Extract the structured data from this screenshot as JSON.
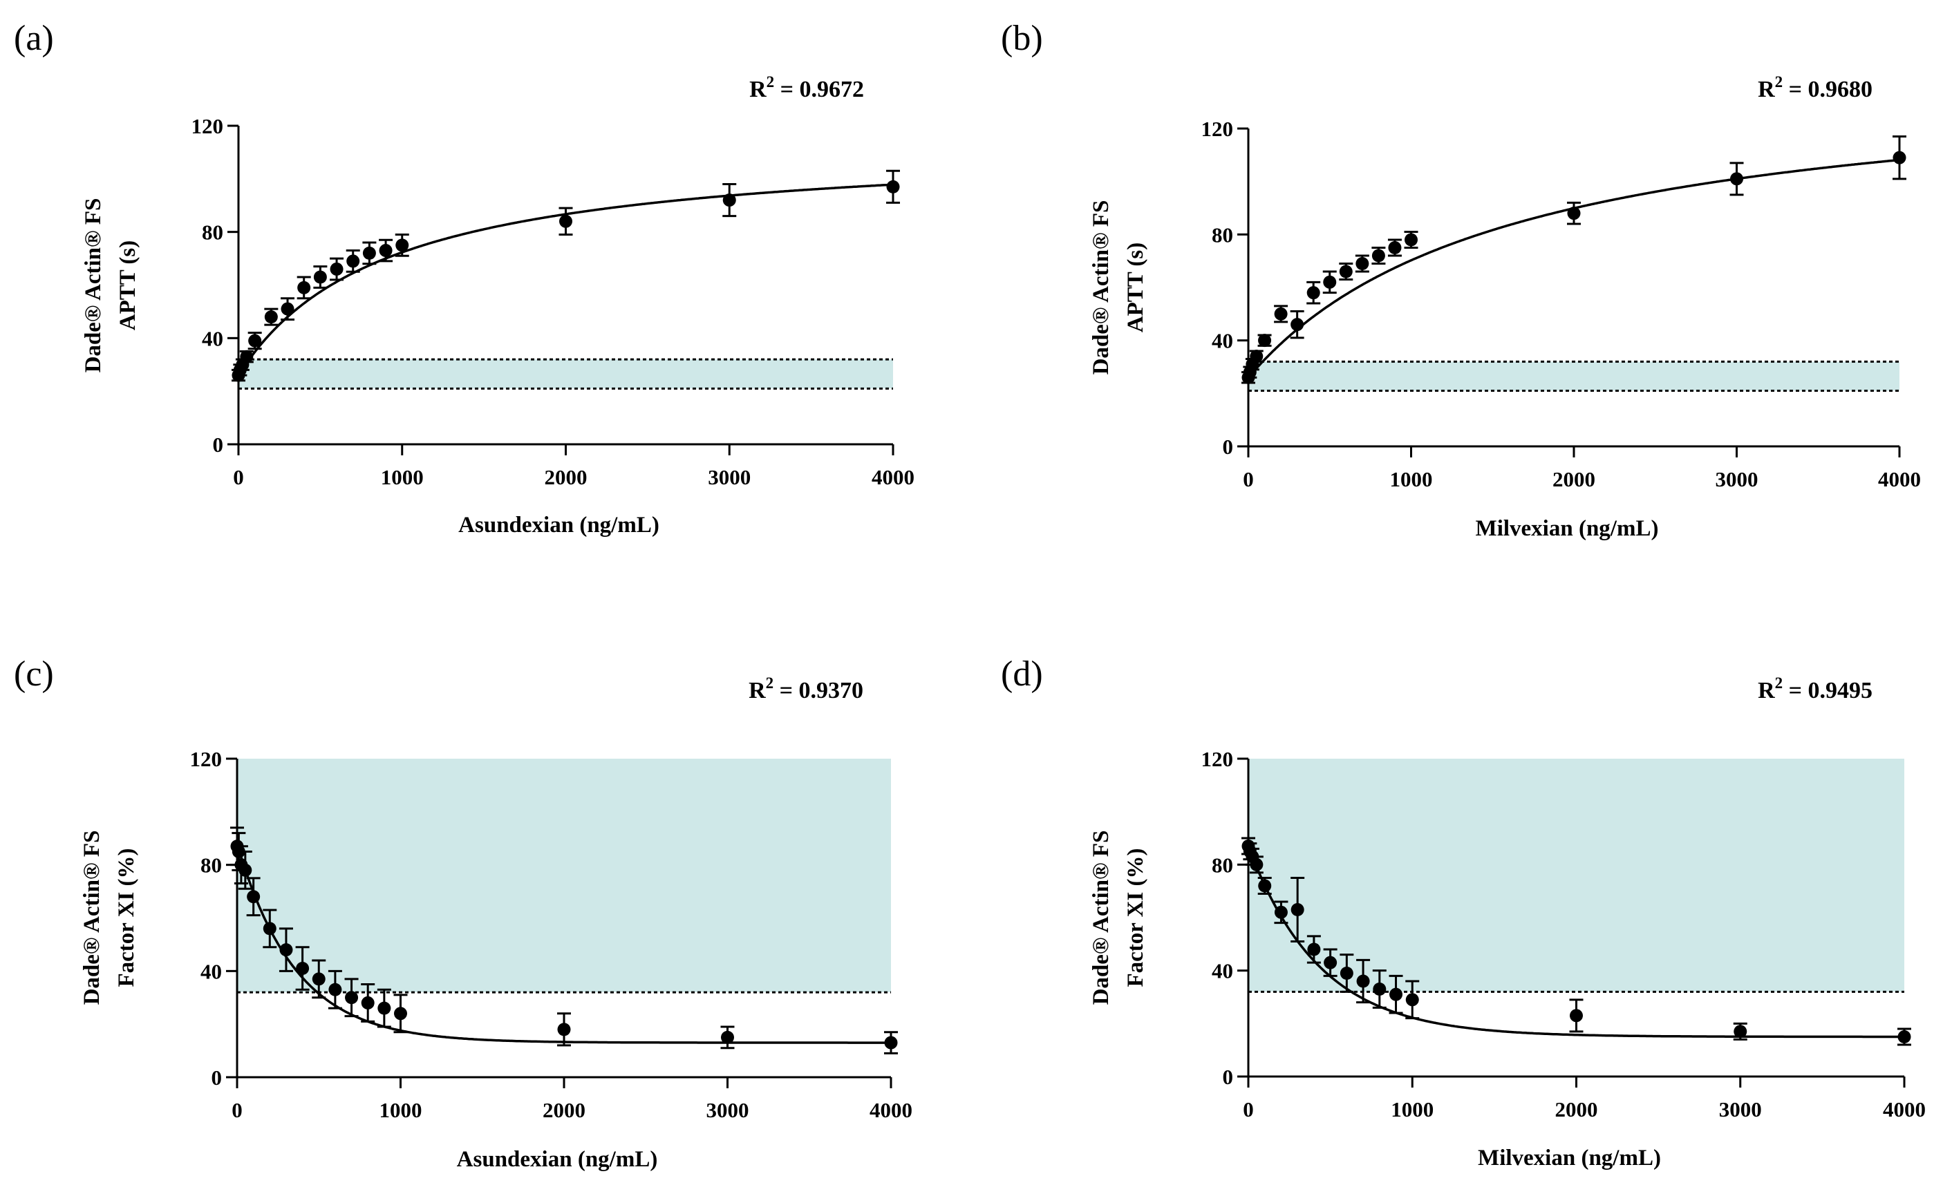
{
  "chart_data": [
    {
      "panel": "(a)",
      "type": "scatter",
      "r2": "R² = 0.9672",
      "r2_prefix": "R",
      "r2_sup": "2",
      "r2_value": " = 0.9672",
      "xlabel": "Asundexian (ng/mL)",
      "ylabel_lines": [
        "Dade® Actin® FS",
        "APTT (s)"
      ],
      "xlim": [
        0,
        4000
      ],
      "ylim": [
        0,
        120
      ],
      "xticks": [
        0,
        1000,
        2000,
        3000,
        4000
      ],
      "yticks": [
        0,
        40,
        80,
        120
      ],
      "band": {
        "low": 21,
        "high": 32
      },
      "points": [
        {
          "x": 0,
          "y": 26,
          "err": 2
        },
        {
          "x": 10,
          "y": 28,
          "err": 2
        },
        {
          "x": 25,
          "y": 30,
          "err": 2
        },
        {
          "x": 50,
          "y": 33,
          "err": 2
        },
        {
          "x": 100,
          "y": 39,
          "err": 3
        },
        {
          "x": 200,
          "y": 48,
          "err": 3
        },
        {
          "x": 300,
          "y": 51,
          "err": 4
        },
        {
          "x": 400,
          "y": 59,
          "err": 4
        },
        {
          "x": 500,
          "y": 63,
          "err": 4
        },
        {
          "x": 600,
          "y": 66,
          "err": 4
        },
        {
          "x": 700,
          "y": 69,
          "err": 4
        },
        {
          "x": 800,
          "y": 72,
          "err": 4
        },
        {
          "x": 900,
          "y": 73,
          "err": 4
        },
        {
          "x": 1000,
          "y": 75,
          "err": 4
        },
        {
          "x": 2000,
          "y": 84,
          "err": 5
        },
        {
          "x": 3000,
          "y": 92,
          "err": 6
        },
        {
          "x": 4000,
          "y": 97,
          "err": 6
        }
      ],
      "fit": {
        "model": "hyperbolic",
        "y0": 26,
        "ymax": 88,
        "k": 900
      }
    },
    {
      "panel": "(b)",
      "type": "scatter",
      "r2": "R² = 0.9680",
      "r2_prefix": "R",
      "r2_sup": "2",
      "r2_value": " = 0.9680",
      "xlabel": "Milvexian (ng/mL)",
      "ylabel_lines": [
        "Dade® Actin® FS",
        "APTT (s)"
      ],
      "xlim": [
        0,
        4000
      ],
      "ylim": [
        0,
        120
      ],
      "xticks": [
        0,
        1000,
        2000,
        3000,
        4000
      ],
      "yticks": [
        0,
        40,
        80,
        120
      ],
      "band": {
        "low": 21,
        "high": 32
      },
      "points": [
        {
          "x": 0,
          "y": 26,
          "err": 2
        },
        {
          "x": 10,
          "y": 28,
          "err": 2
        },
        {
          "x": 25,
          "y": 31,
          "err": 2
        },
        {
          "x": 50,
          "y": 34,
          "err": 2
        },
        {
          "x": 100,
          "y": 40,
          "err": 2
        },
        {
          "x": 200,
          "y": 50,
          "err": 3
        },
        {
          "x": 300,
          "y": 46,
          "err": 5
        },
        {
          "x": 400,
          "y": 58,
          "err": 4
        },
        {
          "x": 500,
          "y": 62,
          "err": 4
        },
        {
          "x": 600,
          "y": 66,
          "err": 3
        },
        {
          "x": 700,
          "y": 69,
          "err": 3
        },
        {
          "x": 800,
          "y": 72,
          "err": 3
        },
        {
          "x": 900,
          "y": 75,
          "err": 3
        },
        {
          "x": 1000,
          "y": 78,
          "err": 3
        },
        {
          "x": 2000,
          "y": 88,
          "err": 4
        },
        {
          "x": 3000,
          "y": 101,
          "err": 6
        },
        {
          "x": 4000,
          "y": 109,
          "err": 8
        }
      ],
      "fit": {
        "model": "hyperbolic",
        "y0": 26,
        "ymax": 115,
        "k": 1600
      }
    },
    {
      "panel": "(c)",
      "type": "scatter",
      "r2": "R² = 0.9370",
      "r2_prefix": "R",
      "r2_sup": "2",
      "r2_value": " = 0.9370",
      "xlabel": "Asundexian (ng/mL)",
      "ylabel_lines": [
        "Dade® Actin® FS",
        "Factor XI (%)"
      ],
      "xlim": [
        0,
        4000
      ],
      "ylim": [
        0,
        120
      ],
      "xticks": [
        0,
        1000,
        2000,
        3000,
        4000
      ],
      "yticks": [
        0,
        40,
        80,
        120
      ],
      "band": {
        "low": 32,
        "high": 120
      },
      "points": [
        {
          "x": 0,
          "y": 87,
          "err": 7
        },
        {
          "x": 10,
          "y": 85,
          "err": 7
        },
        {
          "x": 25,
          "y": 80,
          "err": 7
        },
        {
          "x": 50,
          "y": 78,
          "err": 7
        },
        {
          "x": 100,
          "y": 68,
          "err": 7
        },
        {
          "x": 200,
          "y": 56,
          "err": 7
        },
        {
          "x": 300,
          "y": 48,
          "err": 8
        },
        {
          "x": 400,
          "y": 41,
          "err": 8
        },
        {
          "x": 500,
          "y": 37,
          "err": 7
        },
        {
          "x": 600,
          "y": 33,
          "err": 7
        },
        {
          "x": 700,
          "y": 30,
          "err": 7
        },
        {
          "x": 800,
          "y": 28,
          "err": 7
        },
        {
          "x": 900,
          "y": 26,
          "err": 7
        },
        {
          "x": 1000,
          "y": 24,
          "err": 7
        },
        {
          "x": 2000,
          "y": 18,
          "err": 6
        },
        {
          "x": 3000,
          "y": 15,
          "err": 4
        },
        {
          "x": 4000,
          "y": 13,
          "err": 4
        }
      ],
      "fit": {
        "model": "exponential",
        "plateau": 13,
        "span": 75,
        "k": 0.0028
      }
    },
    {
      "panel": "(d)",
      "type": "scatter",
      "r2": "R² = 0.9495",
      "r2_prefix": "R",
      "r2_sup": "2",
      "r2_value": " = 0.9495",
      "xlabel": "Milvexian (ng/mL)",
      "ylabel_lines": [
        "Dade® Actin® FS",
        "Factor XI (%)"
      ],
      "xlim": [
        0,
        4000
      ],
      "ylim": [
        0,
        120
      ],
      "xticks": [
        0,
        1000,
        2000,
        3000,
        4000
      ],
      "yticks": [
        0,
        40,
        80,
        120
      ],
      "band": {
        "low": 32,
        "high": 120
      },
      "points": [
        {
          "x": 0,
          "y": 87,
          "err": 3
        },
        {
          "x": 10,
          "y": 85,
          "err": 3
        },
        {
          "x": 25,
          "y": 83,
          "err": 3
        },
        {
          "x": 50,
          "y": 80,
          "err": 3
        },
        {
          "x": 100,
          "y": 72,
          "err": 3
        },
        {
          "x": 200,
          "y": 62,
          "err": 4
        },
        {
          "x": 300,
          "y": 63,
          "err": 12
        },
        {
          "x": 400,
          "y": 48,
          "err": 5
        },
        {
          "x": 500,
          "y": 43,
          "err": 5
        },
        {
          "x": 600,
          "y": 39,
          "err": 7
        },
        {
          "x": 700,
          "y": 36,
          "err": 8
        },
        {
          "x": 800,
          "y": 33,
          "err": 7
        },
        {
          "x": 900,
          "y": 31,
          "err": 7
        },
        {
          "x": 1000,
          "y": 29,
          "err": 7
        },
        {
          "x": 2000,
          "y": 23,
          "err": 6
        },
        {
          "x": 3000,
          "y": 17,
          "err": 3
        },
        {
          "x": 4000,
          "y": 15,
          "err": 3
        }
      ],
      "fit": {
        "model": "exponential",
        "plateau": 15,
        "span": 72,
        "k": 0.0023
      }
    }
  ]
}
